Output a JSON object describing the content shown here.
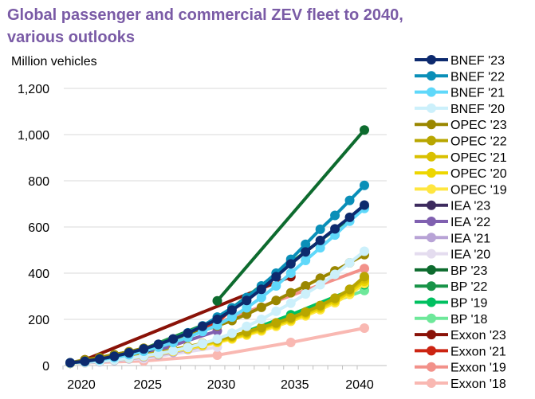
{
  "chart_data": {
    "type": "line",
    "title": "Global passenger and commercial ZEV fleet to 2040, various outlooks",
    "ylabel": "Million vehicles",
    "xlim": [
      2020,
      2040
    ],
    "ylim": [
      0,
      1200
    ],
    "xticks": [
      2020,
      2025,
      2030,
      2035,
      2040
    ],
    "yticks": [
      0,
      200,
      400,
      600,
      800,
      1000,
      1200
    ],
    "ytick_labels": [
      "0",
      "200",
      "400",
      "600",
      "800",
      "1,000",
      "1,200"
    ],
    "grid": "horizontal",
    "legend_position": "right",
    "series": [
      {
        "name": "BNEF '23",
        "color": "#0d2a6e",
        "points": [
          [
            2020,
            12
          ],
          [
            2021,
            18
          ],
          [
            2022,
            28
          ],
          [
            2023,
            40
          ],
          [
            2024,
            55
          ],
          [
            2025,
            72
          ],
          [
            2026,
            92
          ],
          [
            2027,
            115
          ],
          [
            2028,
            140
          ],
          [
            2029,
            170
          ],
          [
            2030,
            200
          ],
          [
            2031,
            240
          ],
          [
            2032,
            282
          ],
          [
            2033,
            330
          ],
          [
            2034,
            385
          ],
          [
            2035,
            440
          ],
          [
            2036,
            492
          ],
          [
            2037,
            542
          ],
          [
            2038,
            592
          ],
          [
            2039,
            642
          ],
          [
            2040,
            695
          ]
        ]
      },
      {
        "name": "BNEF '22",
        "color": "#0a8fb8",
        "points": [
          [
            2020,
            12
          ],
          [
            2021,
            18
          ],
          [
            2022,
            28
          ],
          [
            2023,
            40
          ],
          [
            2024,
            55
          ],
          [
            2025,
            72
          ],
          [
            2026,
            92
          ],
          [
            2027,
            115
          ],
          [
            2028,
            142
          ],
          [
            2029,
            172
          ],
          [
            2030,
            210
          ],
          [
            2031,
            250
          ],
          [
            2032,
            295
          ],
          [
            2033,
            345
          ],
          [
            2034,
            400
          ],
          [
            2035,
            460
          ],
          [
            2036,
            525
          ],
          [
            2037,
            590
          ],
          [
            2038,
            650
          ],
          [
            2039,
            715
          ],
          [
            2040,
            780
          ]
        ]
      },
      {
        "name": "BNEF '21",
        "color": "#5fd8fa",
        "points": [
          [
            2020,
            12
          ],
          [
            2021,
            17
          ],
          [
            2022,
            25
          ],
          [
            2023,
            35
          ],
          [
            2024,
            47
          ],
          [
            2025,
            62
          ],
          [
            2026,
            80
          ],
          [
            2027,
            100
          ],
          [
            2028,
            122
          ],
          [
            2029,
            148
          ],
          [
            2030,
            175
          ],
          [
            2031,
            210
          ],
          [
            2032,
            250
          ],
          [
            2033,
            295
          ],
          [
            2034,
            345
          ],
          [
            2035,
            400
          ],
          [
            2036,
            455
          ],
          [
            2037,
            510
          ],
          [
            2038,
            565
          ],
          [
            2039,
            625
          ],
          [
            2040,
            680
          ]
        ]
      },
      {
        "name": "BNEF '20",
        "color": "#ccf0fb",
        "points": [
          [
            2020,
            10
          ],
          [
            2021,
            13
          ],
          [
            2022,
            18
          ],
          [
            2023,
            24
          ],
          [
            2024,
            32
          ],
          [
            2025,
            42
          ],
          [
            2026,
            52
          ],
          [
            2027,
            64
          ],
          [
            2028,
            78
          ],
          [
            2029,
            95
          ],
          [
            2030,
            115
          ],
          [
            2031,
            140
          ],
          [
            2032,
            170
          ],
          [
            2033,
            200
          ],
          [
            2034,
            235
          ],
          [
            2035,
            270
          ],
          [
            2036,
            310
          ],
          [
            2037,
            350
          ],
          [
            2038,
            395
          ],
          [
            2039,
            445
          ],
          [
            2040,
            495
          ]
        ]
      },
      {
        "name": "OPEC '23",
        "color": "#9a8700",
        "points": [
          [
            2020,
            12
          ],
          [
            2021,
            25
          ],
          [
            2022,
            35
          ],
          [
            2023,
            47
          ],
          [
            2024,
            60
          ],
          [
            2025,
            75
          ],
          [
            2026,
            92
          ],
          [
            2027,
            110
          ],
          [
            2028,
            130
          ],
          [
            2029,
            150
          ],
          [
            2030,
            172
          ],
          [
            2031,
            195
          ],
          [
            2032,
            222
          ],
          [
            2033,
            252
          ],
          [
            2034,
            282
          ],
          [
            2035,
            315
          ],
          [
            2036,
            345
          ],
          [
            2037,
            378
          ],
          [
            2038,
            410
          ],
          [
            2039,
            445
          ],
          [
            2040,
            480
          ]
        ]
      },
      {
        "name": "OPEC '22",
        "color": "#b8a600",
        "points": [
          [
            2020,
            10
          ],
          [
            2021,
            15
          ],
          [
            2022,
            21
          ],
          [
            2023,
            28
          ],
          [
            2024,
            36
          ],
          [
            2025,
            46
          ],
          [
            2026,
            57
          ],
          [
            2027,
            69
          ],
          [
            2028,
            82
          ],
          [
            2029,
            96
          ],
          [
            2030,
            112
          ],
          [
            2031,
            128
          ],
          [
            2032,
            146
          ],
          [
            2033,
            165
          ],
          [
            2034,
            185
          ],
          [
            2035,
            207
          ],
          [
            2036,
            232
          ],
          [
            2037,
            260
          ],
          [
            2038,
            292
          ],
          [
            2039,
            330
          ],
          [
            2040,
            385
          ]
        ]
      },
      {
        "name": "OPEC '21",
        "color": "#d9c000",
        "points": [
          [
            2020,
            10
          ],
          [
            2021,
            14
          ],
          [
            2022,
            20
          ],
          [
            2023,
            27
          ],
          [
            2024,
            35
          ],
          [
            2025,
            44
          ],
          [
            2026,
            54
          ],
          [
            2027,
            66
          ],
          [
            2028,
            79
          ],
          [
            2029,
            93
          ],
          [
            2030,
            108
          ],
          [
            2031,
            124
          ],
          [
            2032,
            142
          ],
          [
            2033,
            161
          ],
          [
            2034,
            181
          ],
          [
            2035,
            203
          ],
          [
            2036,
            228
          ],
          [
            2037,
            255
          ],
          [
            2038,
            287
          ],
          [
            2039,
            325
          ],
          [
            2040,
            375
          ]
        ]
      },
      {
        "name": "OPEC '20",
        "color": "#edd600",
        "points": [
          [
            2020,
            10
          ],
          [
            2021,
            14
          ],
          [
            2022,
            19
          ],
          [
            2023,
            26
          ],
          [
            2024,
            33
          ],
          [
            2025,
            42
          ],
          [
            2026,
            52
          ],
          [
            2027,
            63
          ],
          [
            2028,
            76
          ],
          [
            2029,
            90
          ],
          [
            2030,
            104
          ],
          [
            2031,
            120
          ],
          [
            2032,
            137
          ],
          [
            2033,
            156
          ],
          [
            2034,
            176
          ],
          [
            2035,
            198
          ],
          [
            2036,
            222
          ],
          [
            2037,
            249
          ],
          [
            2038,
            280
          ],
          [
            2039,
            318
          ],
          [
            2040,
            365
          ]
        ]
      },
      {
        "name": "OPEC '19",
        "color": "#ffe640",
        "points": [
          [
            2020,
            10
          ],
          [
            2021,
            13
          ],
          [
            2022,
            18
          ],
          [
            2023,
            24
          ],
          [
            2024,
            31
          ],
          [
            2025,
            40
          ],
          [
            2026,
            50
          ],
          [
            2027,
            61
          ],
          [
            2028,
            73
          ],
          [
            2029,
            86
          ],
          [
            2030,
            100
          ],
          [
            2031,
            115
          ],
          [
            2032,
            132
          ],
          [
            2033,
            150
          ],
          [
            2034,
            170
          ],
          [
            2035,
            192
          ],
          [
            2036,
            215
          ],
          [
            2037,
            242
          ],
          [
            2038,
            272
          ],
          [
            2039,
            308
          ],
          [
            2040,
            355
          ]
        ]
      },
      {
        "name": "IEA '23",
        "color": "#3d2b5e",
        "points": [
          [
            2020,
            10
          ],
          [
            2025,
            55
          ],
          [
            2030,
            200
          ]
        ]
      },
      {
        "name": "IEA '22",
        "color": "#8060b0",
        "points": [
          [
            2020,
            10
          ],
          [
            2025,
            45
          ],
          [
            2030,
            150
          ]
        ]
      },
      {
        "name": "IEA '21",
        "color": "#b8a3d6",
        "points": [
          [
            2020,
            10
          ],
          [
            2021,
            12
          ],
          [
            2022,
            16
          ],
          [
            2023,
            22
          ],
          [
            2024,
            29
          ],
          [
            2025,
            37
          ],
          [
            2026,
            46
          ],
          [
            2027,
            57
          ],
          [
            2028,
            70
          ],
          [
            2029,
            85
          ],
          [
            2030,
            100
          ]
        ]
      },
      {
        "name": "IEA '20",
        "color": "#e4dcef",
        "points": [
          [
            2020,
            10
          ],
          [
            2025,
            30
          ],
          [
            2030,
            80
          ]
        ]
      },
      {
        "name": "BP '23",
        "color": "#0d6b2e",
        "points": [
          [
            2030,
            280
          ],
          [
            2040,
            1020
          ]
        ]
      },
      {
        "name": "BP '22",
        "color": "#189448",
        "points": [
          [
            2020,
            10
          ],
          [
            2025,
            72
          ],
          [
            2030,
            200
          ],
          [
            2035,
            445
          ],
          [
            2040,
            685
          ]
        ]
      },
      {
        "name": "BP '19",
        "color": "#00c060",
        "points": [
          [
            2020,
            10
          ],
          [
            2025,
            45
          ],
          [
            2030,
            100
          ],
          [
            2035,
            220
          ],
          [
            2040,
            350
          ]
        ]
      },
      {
        "name": "BP '18",
        "color": "#6ee89a",
        "points": [
          [
            2020,
            10
          ],
          [
            2025,
            45
          ],
          [
            2030,
            100
          ],
          [
            2035,
            210
          ],
          [
            2040,
            325
          ]
        ]
      },
      {
        "name": "Exxon '23",
        "color": "#8a1208",
        "points": [
          [
            2021,
            25
          ],
          [
            2035,
            385
          ]
        ]
      },
      {
        "name": "Exxon '21",
        "color": "#cc2412",
        "points": [
          [
            2020,
            10
          ],
          [
            2025,
            55
          ],
          [
            2030,
            190
          ],
          [
            2035,
            450
          ]
        ]
      },
      {
        "name": "Exxon '19",
        "color": "#f2918a",
        "points": [
          [
            2020,
            10
          ],
          [
            2025,
            60
          ],
          [
            2030,
            185
          ],
          [
            2040,
            420
          ]
        ]
      },
      {
        "name": "Exxon '18",
        "color": "#f9b8b2",
        "points": [
          [
            2020,
            10
          ],
          [
            2025,
            20
          ],
          [
            2030,
            45
          ],
          [
            2035,
            100
          ],
          [
            2040,
            162
          ]
        ]
      }
    ]
  }
}
